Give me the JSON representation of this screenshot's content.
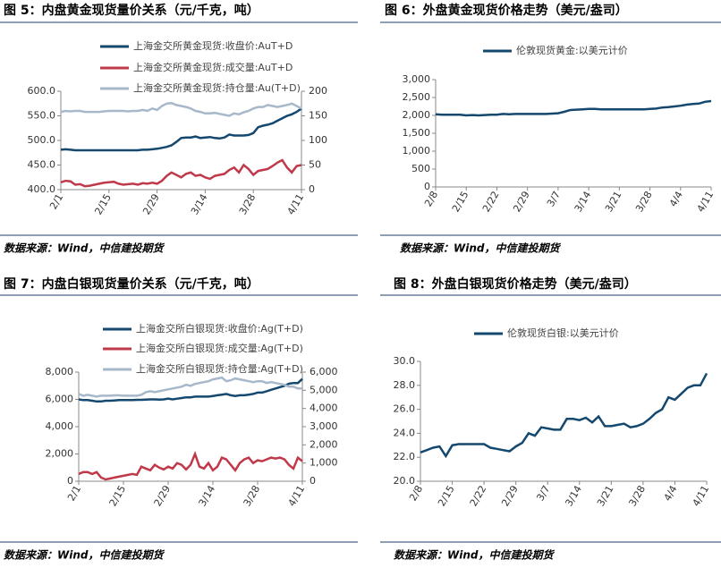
{
  "chart_data": [
    {
      "type": "line",
      "title": "图 5：内盘黄金现货量价关系（元/千克，吨）",
      "source": "数据来源：Wind，中信建投期货",
      "categories": [
        "2/1",
        null,
        null,
        null,
        null,
        null,
        null,
        null,
        null,
        null,
        "2/15",
        null,
        null,
        null,
        null,
        null,
        null,
        null,
        null,
        null,
        "2/29",
        null,
        null,
        null,
        null,
        null,
        null,
        null,
        null,
        null,
        "3/14",
        null,
        null,
        null,
        null,
        null,
        null,
        null,
        null,
        null,
        "3/28",
        null,
        null,
        null,
        null,
        null,
        null,
        null,
        null,
        null,
        "4/11"
      ],
      "ylim": [
        400,
        600
      ],
      "yticks": [
        {
          "value": 400,
          "label": "400.0"
        },
        {
          "value": 450,
          "label": "450.0"
        },
        {
          "value": 500,
          "label": "500.0"
        },
        {
          "value": 550,
          "label": "550.0"
        },
        {
          "value": 600,
          "label": "600.0"
        }
      ],
      "y2lim": [
        0,
        200
      ],
      "y2ticks": [
        0,
        50,
        100,
        150,
        200
      ],
      "series": [
        {
          "name": "上海金交所黄金现货:收盘价:AuT+D",
          "color": "#14486f",
          "values": [
            481,
            482,
            481,
            480,
            480,
            480,
            480,
            480,
            480,
            480,
            480,
            480,
            480,
            480,
            480,
            480,
            480,
            481,
            481,
            482,
            483,
            485,
            487,
            490,
            497,
            505,
            506,
            506,
            508,
            505,
            506,
            507,
            505,
            504,
            506,
            512,
            510,
            510,
            510,
            511,
            515,
            527,
            530,
            532,
            535,
            540,
            545,
            550,
            553,
            558,
            565
          ]
        },
        {
          "name": "上海金交所黄金现货:成交量:AuT+D",
          "color": "#c0394a",
          "axis": "y2",
          "values": [
            15,
            18,
            17,
            10,
            11,
            7,
            8,
            10,
            12,
            14,
            15,
            16,
            12,
            10,
            11,
            12,
            10,
            13,
            12,
            14,
            12,
            18,
            28,
            35,
            30,
            25,
            32,
            35,
            28,
            30,
            25,
            22,
            28,
            30,
            32,
            40,
            45,
            35,
            50,
            42,
            30,
            38,
            40,
            42,
            48,
            55,
            60,
            45,
            35,
            48,
            50
          ]
        },
        {
          "name": "上海金交所黄金现货:持仓量:Au(T+D)",
          "color": "#a7b8cb",
          "axis": "y2",
          "values": [
            158,
            160,
            159,
            160,
            160,
            158,
            158,
            158,
            158,
            159,
            160,
            160,
            160,
            160,
            159,
            160,
            160,
            162,
            160,
            165,
            162,
            170,
            175,
            176,
            172,
            170,
            168,
            165,
            160,
            158,
            155,
            155,
            156,
            154,
            152,
            150,
            155,
            153,
            157,
            160,
            165,
            168,
            168,
            172,
            170,
            168,
            170,
            172,
            175,
            170,
            165
          ]
        }
      ]
    },
    {
      "type": "line",
      "title": "图 6：外盘黄金现货价格走势（美元/盎司）",
      "source": "数据来源：Wind，中信建投期货",
      "categories": [
        "2/8",
        null,
        null,
        null,
        null,
        "2/15",
        null,
        null,
        null,
        null,
        "2/22",
        null,
        null,
        null,
        null,
        "2/29",
        null,
        null,
        null,
        null,
        "3/7",
        null,
        null,
        null,
        null,
        "3/14",
        null,
        null,
        null,
        null,
        "3/21",
        null,
        null,
        null,
        null,
        "3/28",
        null,
        null,
        null,
        null,
        "4/4",
        null,
        null,
        null,
        null,
        "4/11"
      ],
      "ylim": [
        0,
        3000
      ],
      "yticks": [
        0,
        500,
        {
          "value": 1000,
          "label": "1,000"
        },
        {
          "value": 1500,
          "label": "1,500"
        },
        {
          "value": 2000,
          "label": "2,000"
        },
        {
          "value": 2500,
          "label": "2,500"
        },
        {
          "value": 3000,
          "label": "3,000"
        }
      ],
      "series": [
        {
          "name": "伦敦现货黄金:以美元计价",
          "color": "#14486f",
          "values": [
            2030,
            2020,
            2020,
            2020,
            2020,
            2000,
            2010,
            2000,
            2010,
            2020,
            2020,
            2040,
            2030,
            2040,
            2040,
            2040,
            2040,
            2040,
            2040,
            2050,
            2060,
            2100,
            2150,
            2160,
            2170,
            2180,
            2180,
            2170,
            2170,
            2170,
            2170,
            2170,
            2170,
            2170,
            2170,
            2180,
            2190,
            2220,
            2230,
            2250,
            2270,
            2300,
            2320,
            2330,
            2380,
            2400
          ]
        }
      ]
    },
    {
      "type": "line",
      "title": "图 7：内盘白银现货量价关系（元/千克，吨）",
      "source": "数据来源：Wind，中信建投期货",
      "categories": [
        "2/1",
        null,
        null,
        null,
        null,
        null,
        null,
        null,
        null,
        null,
        "2/15",
        null,
        null,
        null,
        null,
        null,
        null,
        null,
        null,
        null,
        "2/29",
        null,
        null,
        null,
        null,
        null,
        null,
        null,
        null,
        null,
        "3/14",
        null,
        null,
        null,
        null,
        null,
        null,
        null,
        null,
        null,
        "3/28",
        null,
        null,
        null,
        null,
        null,
        null,
        null,
        null,
        null,
        "4/11"
      ],
      "ylim": [
        0,
        8000
      ],
      "yticks": [
        0,
        {
          "value": 2000,
          "label": "2,000"
        },
        {
          "value": 4000,
          "label": "4,000"
        },
        {
          "value": 6000,
          "label": "6,000"
        },
        {
          "value": 8000,
          "label": "8,000"
        }
      ],
      "y2lim": [
        0,
        6000
      ],
      "y2ticks": [
        0,
        {
          "value": 1000,
          "label": "1,000"
        },
        {
          "value": 2000,
          "label": "2,000"
        },
        {
          "value": 3000,
          "label": "3,000"
        },
        {
          "value": 4000,
          "label": "4,000"
        },
        {
          "value": 5000,
          "label": "5,000"
        },
        {
          "value": 6000,
          "label": "6,000"
        }
      ],
      "series": [
        {
          "name": "上海金交所白银现货:收盘价:Ag(T+D)",
          "color": "#14486f",
          "values": [
            6000,
            5950,
            5950,
            5900,
            5850,
            5850,
            5900,
            5900,
            5920,
            5950,
            5950,
            5950,
            5950,
            5970,
            5970,
            5980,
            6000,
            6000,
            5980,
            6000,
            6050,
            6000,
            6050,
            6100,
            6150,
            6150,
            6200,
            6200,
            6200,
            6200,
            6250,
            6300,
            6350,
            6400,
            6300,
            6250,
            6300,
            6300,
            6350,
            6400,
            6500,
            6500,
            6600,
            6700,
            6800,
            6900,
            7000,
            7150,
            7200,
            7200,
            7500
          ]
        },
        {
          "name": "上海金交所白银现货:成交量:Ag(T+D)",
          "color": "#c0394a",
          "axis": "y2",
          "values": [
            400,
            500,
            500,
            400,
            500,
            200,
            100,
            150,
            200,
            250,
            300,
            350,
            400,
            350,
            800,
            700,
            600,
            900,
            750,
            650,
            800,
            700,
            1000,
            900,
            650,
            900,
            1500,
            800,
            700,
            1000,
            600,
            800,
            1300,
            1200,
            900,
            600,
            1000,
            1200,
            1300,
            1000,
            1150,
            1100,
            1200,
            1300,
            1250,
            1300,
            1200,
            900,
            700,
            1300,
            1100
          ]
        },
        {
          "name": "上海金交所白银现货:持仓量:Ag(T+D)",
          "color": "#a7b8cb",
          "axis": "y2",
          "values": [
            4800,
            4700,
            4750,
            4700,
            4650,
            4700,
            4700,
            4700,
            4720,
            4720,
            4700,
            4700,
            4700,
            4700,
            4750,
            4900,
            4950,
            4900,
            4950,
            5000,
            5050,
            5100,
            5150,
            5200,
            5300,
            5250,
            5350,
            5400,
            5450,
            5500,
            5600,
            5650,
            5700,
            5500,
            5550,
            5650,
            5600,
            5550,
            5500,
            5450,
            5500,
            5500,
            5400,
            5450,
            5400,
            5350,
            5300,
            5200,
            5200,
            5100,
            5100
          ]
        }
      ]
    },
    {
      "type": "line",
      "title": "图 8：外盘白银现货价格走势（美元/盎司）",
      "source": "数据来源：Wind，中信建投期货",
      "categories": [
        "2/8",
        null,
        null,
        null,
        null,
        "2/15",
        null,
        null,
        null,
        null,
        "2/22",
        null,
        null,
        null,
        null,
        "2/29",
        null,
        null,
        null,
        null,
        "3/7",
        null,
        null,
        null,
        null,
        "3/14",
        null,
        null,
        null,
        null,
        "3/21",
        null,
        null,
        null,
        null,
        "3/28",
        null,
        null,
        null,
        null,
        "4/4",
        null,
        null,
        null,
        null,
        "4/11"
      ],
      "ylim": [
        20,
        30
      ],
      "yticks": [
        {
          "value": 20,
          "label": "20.0"
        },
        {
          "value": 22,
          "label": "22.0"
        },
        {
          "value": 24,
          "label": "24.0"
        },
        {
          "value": 26,
          "label": "26.0"
        },
        {
          "value": 28,
          "label": "28.0"
        },
        {
          "value": 30,
          "label": "30.0"
        }
      ],
      "series": [
        {
          "name": "伦敦现货白银:以美元计价",
          "color": "#14486f",
          "values": [
            22.4,
            22.6,
            22.8,
            22.9,
            22.1,
            23.0,
            23.1,
            23.1,
            23.1,
            23.1,
            23.1,
            22.8,
            22.7,
            22.6,
            22.5,
            22.9,
            23.2,
            24.0,
            23.8,
            24.5,
            24.4,
            24.3,
            24.3,
            25.2,
            25.2,
            25.1,
            25.3,
            24.9,
            25.4,
            24.6,
            24.6,
            24.7,
            24.8,
            24.5,
            24.6,
            24.8,
            25.2,
            25.7,
            26.0,
            27.0,
            26.8,
            27.3,
            27.8,
            28.0,
            28.0,
            29.0
          ]
        }
      ]
    }
  ]
}
